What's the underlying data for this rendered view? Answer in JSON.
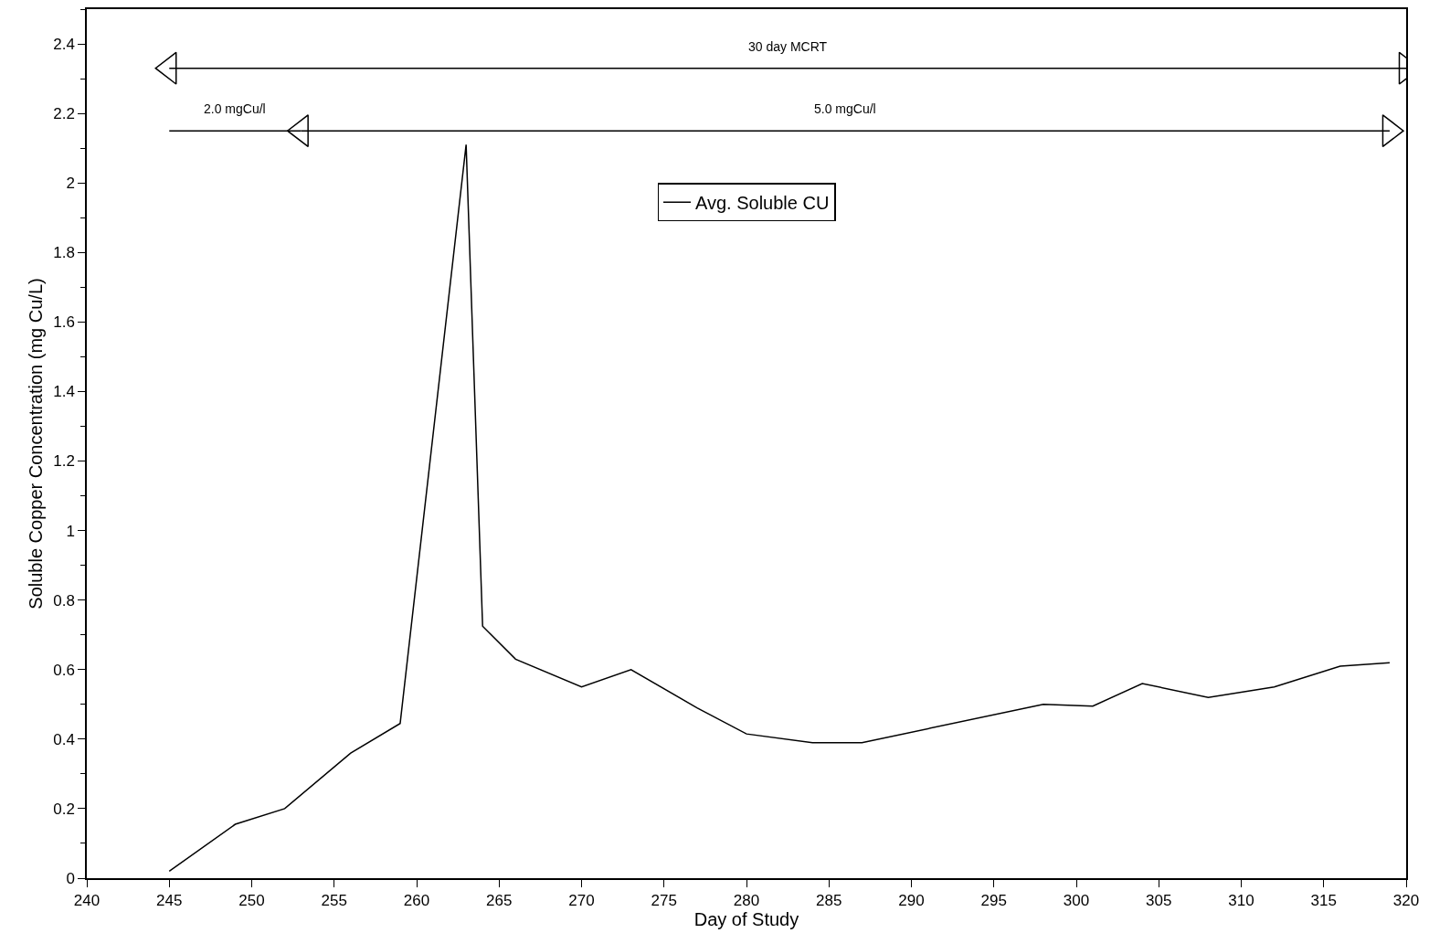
{
  "chart_data": {
    "type": "line",
    "xlabel": "Day of Study",
    "ylabel": "Soluble Copper Concentration (mg Cu/L)",
    "xlim": [
      240,
      320
    ],
    "xticks": [
      240,
      245,
      250,
      255,
      260,
      265,
      270,
      275,
      280,
      285,
      290,
      295,
      300,
      305,
      310,
      315,
      320
    ],
    "ylim": [
      0,
      2.5
    ],
    "yticks": [
      0,
      0.2,
      0.4,
      0.6,
      0.8,
      1,
      1.2,
      1.4,
      1.6,
      1.8,
      2,
      2.2,
      2.4
    ],
    "legend": "top",
    "series": [
      {
        "name": "Avg. Soluble CU",
        "color": "#000000",
        "x": [
          245,
          249,
          252,
          256,
          259,
          263,
          264,
          266,
          270,
          273,
          277,
          280,
          284,
          287,
          298,
          301,
          304,
          308,
          312,
          316,
          319
        ],
        "values": [
          0.02,
          0.155,
          0.2,
          0.36,
          0.445,
          2.11,
          0.725,
          0.63,
          0.55,
          0.6,
          0.49,
          0.415,
          0.39,
          0.39,
          0.5,
          0.495,
          0.56,
          0.52,
          0.55,
          0.61,
          0.62
        ]
      },
      {
        "color": "#000000",
        "x": [
          245,
          320
        ],
        "values": [
          2.33,
          2.33
        ],
        "marker": "triangle"
      },
      {
        "color": "#000000",
        "x": [
          245,
          253
        ],
        "values": [
          2.15,
          2.15
        ]
      },
      {
        "color": "#000000",
        "x": [
          253,
          319
        ],
        "values": [
          2.15,
          2.15
        ],
        "marker": "triangle"
      }
    ],
    "annotations": [
      "30 day MCRT",
      "2.0 mgCu/l",
      "5.0 mgCu/l"
    ]
  }
}
